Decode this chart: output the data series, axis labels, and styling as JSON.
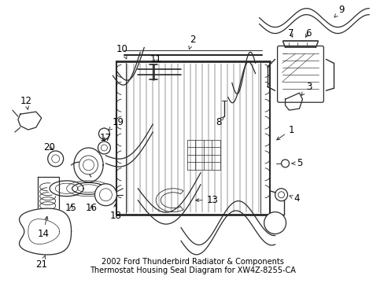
{
  "background_color": "#ffffff",
  "line_color": "#2a2a2a",
  "text_color": "#000000",
  "caption": "2002 Ford Thunderbird Radiator & Components\nThermostat Housing Seal Diagram for XW4Z-8255-CA",
  "font_size": 7,
  "label_font_size": 8.5,
  "fig_w": 4.89,
  "fig_h": 3.6,
  "dpi": 100
}
